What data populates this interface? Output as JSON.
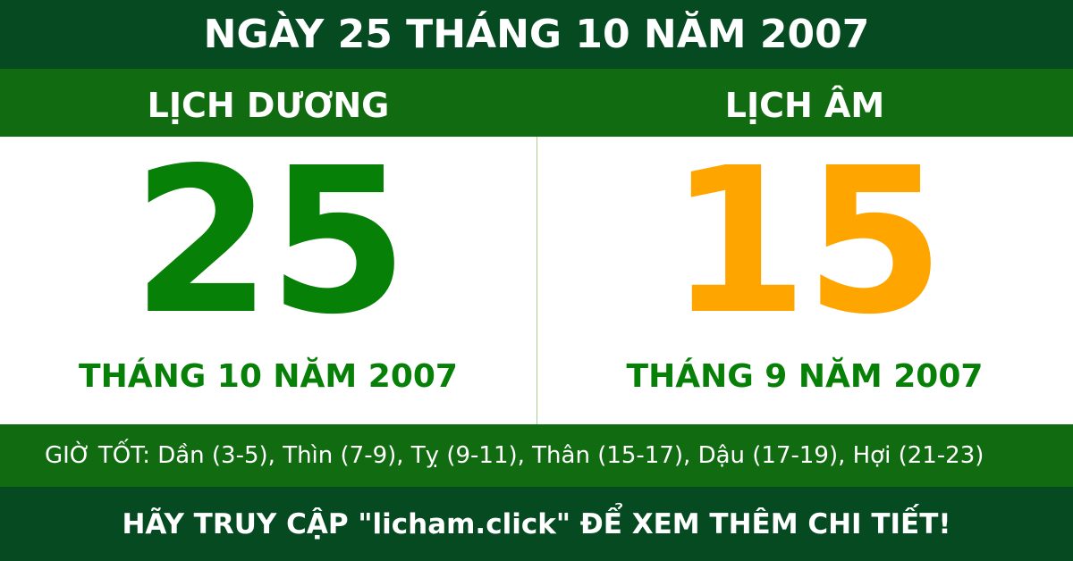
{
  "title": "NGÀY 25 THÁNG 10 NĂM 2007",
  "solar": {
    "heading": "LỊCH DƯƠNG",
    "day": "25",
    "month_year": "THÁNG 10 NĂM 2007"
  },
  "lunar": {
    "heading": "LỊCH ÂM",
    "day": "15",
    "month_year": "THÁNG 9 NĂM 2007"
  },
  "good_hours": "GIỜ TỐT: Dần (3-5), Thìn (7-9), Tỵ (9-11), Thân (15-17), Dậu (17-19), Hợi (21-23)",
  "footer": "HÃY TRUY CẬP \"licham.click\" ĐỂ XEM THÊM CHI TIẾT!",
  "colors": {
    "dark_green": "#064a22",
    "band_green": "#116b10",
    "solar_number": "#068006",
    "lunar_number": "#ffa500"
  }
}
